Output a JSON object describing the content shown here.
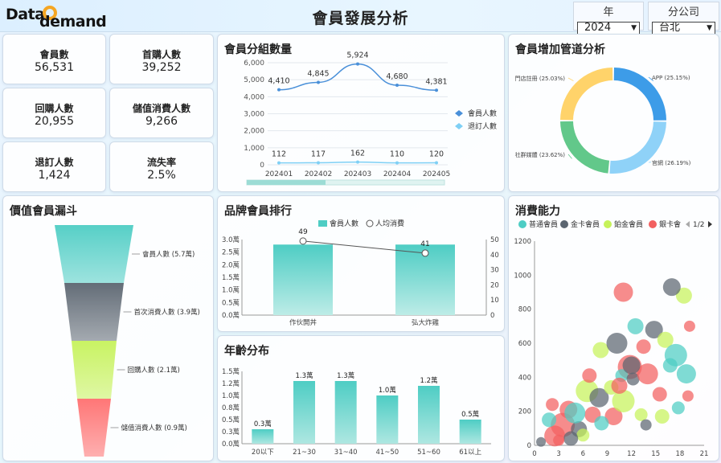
{
  "header": {
    "logo_data": "Data",
    "logo_demand": "demand",
    "title": "會員發展分析",
    "year_label": "年",
    "year_value": "2024",
    "branch_label": "分公司",
    "branch_value": "台北"
  },
  "kpis": [
    {
      "label": "會員數",
      "value": "56,531"
    },
    {
      "label": "首購人數",
      "value": "39,252"
    },
    {
      "label": "回購人數",
      "value": "20,955"
    },
    {
      "label": "儲值消費人數",
      "value": "9,266"
    },
    {
      "label": "退訂人數",
      "value": "1,424"
    },
    {
      "label": "流失率",
      "value": "2.5%"
    }
  ],
  "panels": {
    "group_title": "會員分組數量",
    "channel_title": "會員增加管道分析",
    "funnel_title": "價值會員漏斗",
    "brand_title": "品牌會員排行",
    "age_title": "年齡分布",
    "spend_title": "消費能力"
  },
  "colors": {
    "teal": "#4ecdc4",
    "blue": "#4a90d9",
    "lightblue": "#7fd0f5",
    "funnel": [
      "#4ecdc4",
      "#5b6570",
      "#c6f25a",
      "#ff6f6f"
    ],
    "donut": [
      "#3d9ce8",
      "#8fd2f8",
      "#62c88a",
      "#ffd36a"
    ],
    "bubble": [
      "#4ecdc4",
      "#5b6570",
      "#c6f25a",
      "#f26060"
    ]
  },
  "chart_data": [
    {
      "id": "group",
      "type": "line",
      "categories": [
        "202401",
        "202402",
        "202403",
        "202404",
        "202405"
      ],
      "series": [
        {
          "name": "會員人數",
          "values": [
            4410,
            4845,
            5924,
            4680,
            4381
          ],
          "labels": [
            "4,410",
            "4,845",
            "5,924",
            "4,680",
            "4,381"
          ]
        },
        {
          "name": "退訂人數",
          "values": [
            112,
            117,
            162,
            110,
            120
          ],
          "labels": [
            "112",
            "117",
            "162",
            "110",
            "120"
          ]
        }
      ],
      "ylim": [
        0,
        6000
      ],
      "yticks": [
        "0",
        "1,000",
        "2,000",
        "3,000",
        "4,000",
        "5,000",
        "6,000"
      ],
      "legend": "right"
    },
    {
      "id": "channel",
      "type": "pie",
      "slices": [
        {
          "label": "APP (25.15%)",
          "value": 25.15
        },
        {
          "label": "官網 (26.19%)",
          "value": 26.19
        },
        {
          "label": "社群媒體 (23.62%)",
          "value": 23.62
        },
        {
          "label": "門店註冊 (25.03%)",
          "value": 25.03
        }
      ]
    },
    {
      "id": "funnel",
      "type": "bar",
      "stages": [
        {
          "label": "會員人數 (5.7萬)",
          "value": 5.7
        },
        {
          "label": "首次消費人數 (3.9萬)",
          "value": 3.9
        },
        {
          "label": "回購人數 (2.1萬)",
          "value": 2.1
        },
        {
          "label": "儲值消費人數 (0.9萬)",
          "value": 0.9
        }
      ]
    },
    {
      "id": "brand",
      "type": "bar",
      "categories": [
        "作伙開丼",
        "弘大炸雞"
      ],
      "series": [
        {
          "name": "會員人數",
          "values": [
            2.8,
            2.8
          ]
        },
        {
          "name": "人均消費",
          "values": [
            49,
            41
          ],
          "labels": [
            "49",
            "41"
          ]
        }
      ],
      "ylim": [
        0,
        3.0
      ],
      "yticks": [
        "0.0萬",
        "0.5萬",
        "1.0萬",
        "1.5萬",
        "2.0萬",
        "2.5萬",
        "3.0萬"
      ],
      "y2lim": [
        0,
        50
      ],
      "y2ticks": [
        "0",
        "10",
        "20",
        "30",
        "40",
        "50"
      ],
      "legend": "top"
    },
    {
      "id": "age",
      "type": "bar",
      "categories": [
        "20以下",
        "21~30",
        "31~40",
        "41~50",
        "51~60",
        "61以上"
      ],
      "values": [
        0.3,
        1.3,
        1.3,
        1.0,
        1.2,
        0.5
      ],
      "labels": [
        "0.3萬",
        "1.3萬",
        "1.3萬",
        "1.0萬",
        "1.2萬",
        "0.5萬"
      ],
      "ylim": [
        0,
        1.5
      ],
      "yticks": [
        "0.0萬",
        "0.3萬",
        "0.5萬",
        "0.8萬",
        "1.0萬",
        "1.2萬",
        "1.5萬"
      ]
    },
    {
      "id": "spend",
      "type": "scatter",
      "legend_items": [
        "普通會員",
        "金卡會員",
        "鉑金會員",
        "銀卡會"
      ],
      "legend_page": "1/2",
      "xlim": [
        0,
        21
      ],
      "xticks": [
        "0",
        "3",
        "6",
        "9",
        "12",
        "15",
        "18",
        "21"
      ],
      "ylim": [
        0,
        1200
      ],
      "yticks": [
        "0",
        "200",
        "400",
        "600",
        "800",
        "1000",
        "1200"
      ],
      "points": [
        {
          "x": 2.5,
          "y": 55,
          "r": 13,
          "g": 3
        },
        {
          "x": 3.5,
          "y": 120,
          "r": 15,
          "g": 3
        },
        {
          "x": 4.2,
          "y": 210,
          "r": 11,
          "g": 3
        },
        {
          "x": 1.8,
          "y": 150,
          "r": 9,
          "g": 0
        },
        {
          "x": 6.5,
          "y": 320,
          "r": 14,
          "g": 2
        },
        {
          "x": 6.8,
          "y": 410,
          "r": 9,
          "g": 3
        },
        {
          "x": 5.5,
          "y": 95,
          "r": 10,
          "g": 1
        },
        {
          "x": 8.2,
          "y": 560,
          "r": 10,
          "g": 2
        },
        {
          "x": 10.2,
          "y": 600,
          "r": 13,
          "g": 1
        },
        {
          "x": 11.8,
          "y": 460,
          "r": 15,
          "g": 3
        },
        {
          "x": 12.5,
          "y": 700,
          "r": 10,
          "g": 0
        },
        {
          "x": 13.5,
          "y": 580,
          "r": 9,
          "g": 3
        },
        {
          "x": 14.8,
          "y": 680,
          "r": 11,
          "g": 1
        },
        {
          "x": 16.2,
          "y": 620,
          "r": 10,
          "g": 2
        },
        {
          "x": 17.5,
          "y": 530,
          "r": 14,
          "g": 0
        },
        {
          "x": 18.8,
          "y": 420,
          "r": 12,
          "g": 0
        },
        {
          "x": 15.5,
          "y": 300,
          "r": 9,
          "g": 3
        },
        {
          "x": 13.2,
          "y": 180,
          "r": 8,
          "g": 2
        },
        {
          "x": 8.0,
          "y": 280,
          "r": 12,
          "g": 1
        },
        {
          "x": 9.5,
          "y": 340,
          "r": 9,
          "g": 2
        },
        {
          "x": 10.8,
          "y": 410,
          "r": 8,
          "g": 0
        },
        {
          "x": 7.2,
          "y": 180,
          "r": 10,
          "g": 3
        },
        {
          "x": 5.0,
          "y": 190,
          "r": 13,
          "g": 0
        },
        {
          "x": 2.2,
          "y": 240,
          "r": 8,
          "g": 3
        },
        {
          "x": 9.8,
          "y": 170,
          "r": 11,
          "g": 3
        },
        {
          "x": 11.0,
          "y": 260,
          "r": 14,
          "g": 2
        },
        {
          "x": 12.2,
          "y": 390,
          "r": 8,
          "g": 1
        },
        {
          "x": 14.0,
          "y": 420,
          "r": 13,
          "g": 3
        },
        {
          "x": 16.8,
          "y": 470,
          "r": 9,
          "g": 0
        },
        {
          "x": 18.5,
          "y": 880,
          "r": 10,
          "g": 2
        },
        {
          "x": 17.0,
          "y": 930,
          "r": 11,
          "g": 1
        },
        {
          "x": 11.0,
          "y": 900,
          "r": 12,
          "g": 3
        },
        {
          "x": 19.2,
          "y": 700,
          "r": 7,
          "g": 3
        },
        {
          "x": 8.3,
          "y": 130,
          "r": 9,
          "g": 0
        },
        {
          "x": 13.8,
          "y": 120,
          "r": 7,
          "g": 1
        },
        {
          "x": 6.0,
          "y": 60,
          "r": 8,
          "g": 2
        },
        {
          "x": 4.5,
          "y": 40,
          "r": 9,
          "g": 1
        },
        {
          "x": 15.8,
          "y": 170,
          "r": 9,
          "g": 2
        },
        {
          "x": 17.8,
          "y": 220,
          "r": 8,
          "g": 0
        },
        {
          "x": 19.0,
          "y": 290,
          "r": 7,
          "g": 3
        },
        {
          "x": 12.0,
          "y": 470,
          "r": 11,
          "g": 1
        },
        {
          "x": 10.5,
          "y": 350,
          "r": 10,
          "g": 3
        },
        {
          "x": 3.0,
          "y": 30,
          "r": 7,
          "g": 3
        },
        {
          "x": 0.8,
          "y": 20,
          "r": 6,
          "g": 1
        }
      ]
    }
  ]
}
